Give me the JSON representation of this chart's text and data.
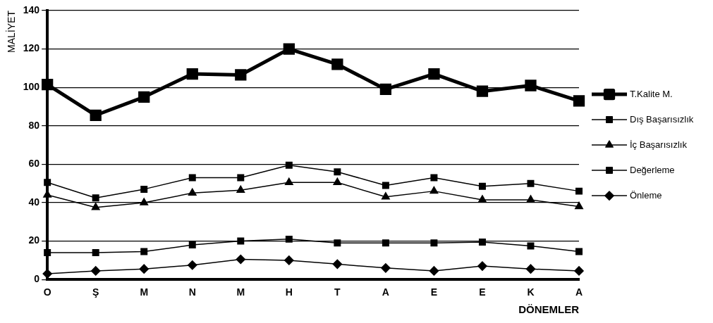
{
  "chart_data": {
    "type": "line",
    "xlabel": "DÖNEMLER",
    "ylabel": "MALİYET",
    "categories": [
      "O",
      "Ş",
      "M",
      "N",
      "M",
      "H",
      "T",
      "A",
      "E",
      "E",
      "K",
      "A"
    ],
    "series": [
      {
        "name": "T.Kalite M.",
        "color": "#000000",
        "marker": "square",
        "values": [
          101.5,
          85.5,
          95,
          107,
          106.5,
          120,
          112,
          99,
          107,
          98,
          101,
          93
        ]
      },
      {
        "name": "Dış Başarısızlık",
        "color": "#000000",
        "marker": "square",
        "values": [
          50.5,
          42.5,
          47,
          53,
          53,
          59.5,
          56,
          49,
          53,
          48.5,
          50,
          46
        ]
      },
      {
        "name": "İç Başarısızlık",
        "color": "#000000",
        "marker": "triangle",
        "values": [
          44,
          37.5,
          40,
          45,
          46.5,
          50.5,
          50.5,
          43,
          46,
          41.5,
          41.5,
          38
        ]
      },
      {
        "name": "Değerleme",
        "color": "#000000",
        "marker": "square",
        "values": [
          14,
          14,
          14.5,
          18,
          20,
          21,
          19,
          19,
          19,
          19.5,
          17.5,
          14.5
        ]
      },
      {
        "name": "Önleme",
        "color": "#000000",
        "marker": "diamond",
        "values": [
          3,
          4.5,
          5.5,
          7.5,
          10.5,
          10,
          8,
          6,
          4.5,
          7,
          5.5,
          4.5
        ]
      }
    ],
    "ylim": [
      0,
      140
    ],
    "yticks": [
      0,
      20,
      40,
      60,
      80,
      100,
      120,
      140
    ],
    "grid": "y",
    "legend": "right",
    "line_style": "solid"
  }
}
